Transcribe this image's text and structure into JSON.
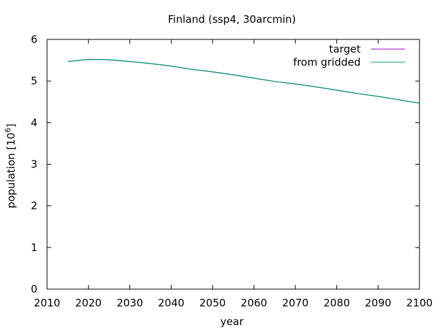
{
  "chart_data": {
    "type": "line",
    "title": "Finland (ssp4, 30arcmin)",
    "xlabel": "year",
    "ylabel": "population [10",
    "ylabel_sup": "6",
    "ylabel_close": "]",
    "xlim": [
      2010,
      2100
    ],
    "ylim": [
      0,
      6
    ],
    "x_ticks": [
      "2010",
      "2020",
      "2030",
      "2040",
      "2050",
      "2060",
      "2070",
      "2080",
      "2090",
      "2100"
    ],
    "y_ticks": [
      "0",
      "1",
      "2",
      "3",
      "4",
      "5",
      "6"
    ],
    "grid": false,
    "legend_position": "top-right",
    "x": [
      2015,
      2020,
      2025,
      2030,
      2035,
      2040,
      2045,
      2050,
      2055,
      2060,
      2065,
      2070,
      2075,
      2080,
      2085,
      2090,
      2095,
      2100
    ],
    "series": [
      {
        "name": "target",
        "color": "#9400d3",
        "values": [
          5.47,
          5.52,
          5.51,
          5.47,
          5.42,
          5.36,
          5.28,
          5.22,
          5.15,
          5.07,
          4.99,
          4.93,
          4.86,
          4.78,
          4.7,
          4.63,
          4.55,
          4.47
        ]
      },
      {
        "name": "from gridded",
        "color": "#009e73",
        "values": [
          5.47,
          5.52,
          5.51,
          5.47,
          5.42,
          5.36,
          5.28,
          5.22,
          5.15,
          5.07,
          4.99,
          4.93,
          4.86,
          4.78,
          4.7,
          4.63,
          4.55,
          4.47
        ]
      }
    ]
  }
}
